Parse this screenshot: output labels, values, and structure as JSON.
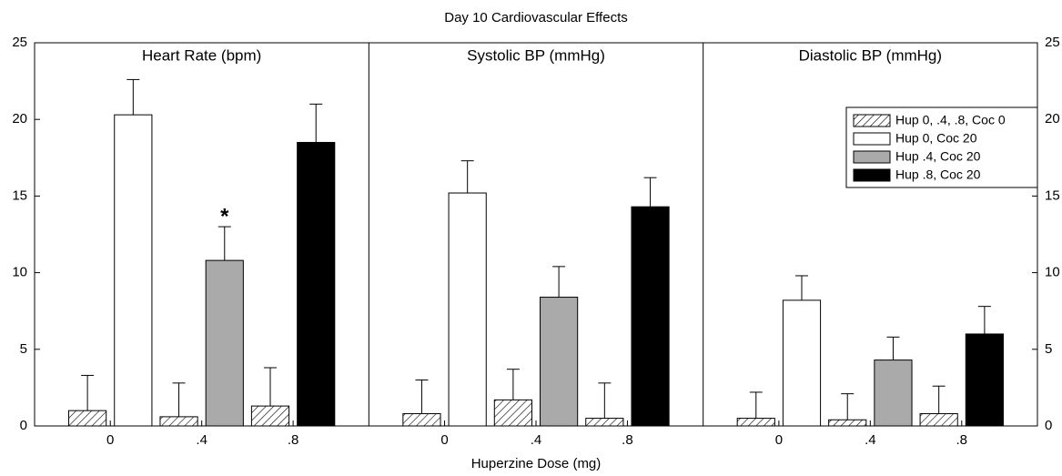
{
  "chart_data": {
    "type": "bar",
    "title": "Day 10 Cardiovascular Effects",
    "x_label": "Huperzine Dose (mg)",
    "ylim": [
      0,
      25
    ],
    "yticks": [
      0,
      5,
      10,
      15,
      20,
      25
    ],
    "categories": [
      "0",
      ".4",
      ".8"
    ],
    "series": [
      {
        "name": "Hup 0, .4, .8, Coc 0",
        "color": "#ffffff",
        "pattern": "hatch"
      },
      {
        "name": "Hup 0, Coc 20",
        "color": "#ffffff"
      },
      {
        "name": "Hup .4, Coc 20",
        "color": "#aaaaaa"
      },
      {
        "name": "Hup .8, Coc 20",
        "color": "#000000"
      }
    ],
    "panels": [
      {
        "title": "Heart Rate (bpm)",
        "series": [
          {
            "values": [
              1.0,
              0.6,
              1.3
            ],
            "errors": [
              2.3,
              2.2,
              2.5
            ]
          },
          {
            "values": [
              20.3,
              null,
              null
            ],
            "errors": [
              2.3,
              null,
              null
            ]
          },
          {
            "values": [
              null,
              10.8,
              null
            ],
            "errors": [
              null,
              2.2,
              null
            ],
            "annotations": [
              null,
              "*",
              null
            ]
          },
          {
            "values": [
              null,
              null,
              18.5
            ],
            "errors": [
              null,
              null,
              2.5
            ]
          }
        ]
      },
      {
        "title": "Systolic BP (mmHg)",
        "series": [
          {
            "values": [
              0.8,
              1.7,
              0.5
            ],
            "errors": [
              2.2,
              2.0,
              2.3
            ]
          },
          {
            "values": [
              15.2,
              null,
              null
            ],
            "errors": [
              2.1,
              null,
              null
            ]
          },
          {
            "values": [
              null,
              8.4,
              null
            ],
            "errors": [
              null,
              2.0,
              null
            ]
          },
          {
            "values": [
              null,
              null,
              14.3
            ],
            "errors": [
              null,
              null,
              1.9
            ]
          }
        ]
      },
      {
        "title": "Diastolic BP (mmHg)",
        "series": [
          {
            "values": [
              0.5,
              0.4,
              0.8
            ],
            "errors": [
              1.7,
              1.7,
              1.8
            ]
          },
          {
            "values": [
              8.2,
              null,
              null
            ],
            "errors": [
              1.6,
              null,
              null
            ]
          },
          {
            "values": [
              null,
              4.3,
              null
            ],
            "errors": [
              null,
              1.5,
              null
            ]
          },
          {
            "values": [
              null,
              null,
              6.0
            ],
            "errors": [
              null,
              null,
              1.8
            ]
          }
        ]
      }
    ]
  }
}
